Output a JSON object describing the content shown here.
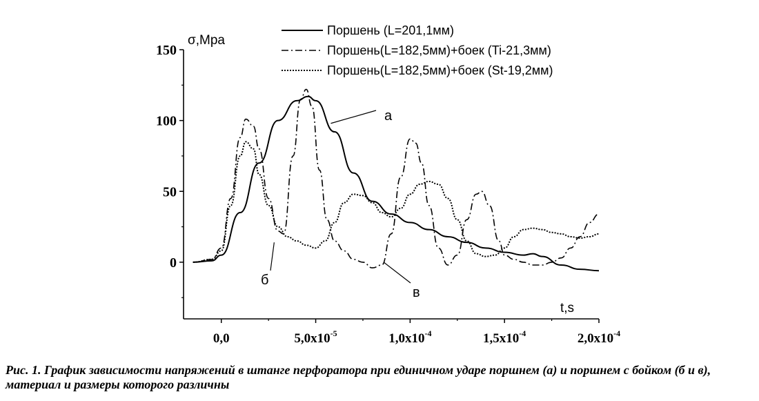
{
  "chart_data": {
    "type": "line",
    "ylabel": "σ,Mpa",
    "xlabel": "t,s",
    "xlim": [
      -2e-05,
      0.0002
    ],
    "ylim": [
      -40,
      150
    ],
    "y_ticks": [
      0,
      50,
      100,
      150
    ],
    "y_tick_labels": [
      "0",
      "50",
      "100",
      "150"
    ],
    "x_ticks": [
      0,
      5e-05,
      0.0001,
      0.00015,
      0.0002
    ],
    "x_tick_labels": [
      {
        "mantissa": "0,0",
        "exp": ""
      },
      {
        "mantissa": "5,0x10",
        "exp": "-5"
      },
      {
        "mantissa": "1,0x10",
        "exp": "-4"
      },
      {
        "mantissa": "1,5x10",
        "exp": "-4"
      },
      {
        "mantissa": "2,0x10",
        "exp": "-4"
      }
    ],
    "legend_position": "top-center",
    "series": [
      {
        "name": "Поршень (L=201,1мм)",
        "style": "solid",
        "annotation": "а",
        "x": [
          -1.5e-05,
          -5e-06,
          0,
          1e-05,
          2e-05,
          3e-05,
          4e-05,
          4.6e-05,
          5e-05,
          6e-05,
          7e-05,
          8e-05,
          9e-05,
          0.0001,
          0.00011,
          0.00012,
          0.00013,
          0.00014,
          0.00015,
          0.00016,
          0.000165,
          0.00017,
          0.00018,
          0.00019,
          0.0002
        ],
        "y": [
          0,
          1,
          5,
          35,
          70,
          100,
          114,
          117,
          114,
          92,
          63,
          43,
          34,
          28,
          23,
          18,
          14,
          10,
          7,
          5,
          6,
          4,
          -2,
          -5,
          -6
        ]
      },
      {
        "name": "Поршень(L=182,5мм)+боек (Ti-21,3мм)",
        "style": "dashdot",
        "annotation": "в",
        "x": [
          -1.5e-05,
          -5e-06,
          0,
          5e-06,
          1e-05,
          1.3e-05,
          1.7e-05,
          2e-05,
          2.5e-05,
          3e-05,
          3.3e-05,
          3.8e-05,
          4.2e-05,
          4.5e-05,
          4.8e-05,
          5.2e-05,
          5.6e-05,
          6e-05,
          6.5e-05,
          7e-05,
          7.5e-05,
          8e-05,
          8.5e-05,
          9e-05,
          9.5e-05,
          0.0001,
          0.000103,
          0.000106,
          0.00011,
          0.000115,
          0.00012,
          0.000125,
          0.00013,
          0.000135,
          0.000138,
          0.000142,
          0.000147,
          0.00015,
          0.000155,
          0.00016,
          0.000165,
          0.00017,
          0.000175,
          0.00018,
          0.000185,
          0.00019,
          0.000195,
          0.0002
        ],
        "y": [
          0,
          2,
          10,
          45,
          88,
          101,
          96,
          80,
          45,
          22,
          20,
          75,
          115,
          122,
          110,
          65,
          30,
          15,
          8,
          2,
          0,
          -4,
          -2,
          20,
          60,
          87,
          84,
          70,
          40,
          10,
          -2,
          5,
          30,
          48,
          50,
          40,
          15,
          5,
          2,
          0,
          -2,
          -2,
          0,
          3,
          10,
          18,
          28,
          34
        ]
      },
      {
        "name": "Поршень(L=182,5мм)+боек (St-19,2мм)",
        "style": "dotted",
        "annotation": "б",
        "x": [
          -1.5e-05,
          -5e-06,
          0,
          5e-06,
          1e-05,
          1.3e-05,
          1.7e-05,
          2e-05,
          2.5e-05,
          3e-05,
          3.5e-05,
          4e-05,
          4.5e-05,
          5e-05,
          5.5e-05,
          6e-05,
          6.5e-05,
          7e-05,
          7.5e-05,
          8e-05,
          8.5e-05,
          9e-05,
          9.5e-05,
          0.0001,
          0.000105,
          0.00011,
          0.000115,
          0.00012,
          0.000125,
          0.00013,
          0.000135,
          0.00014,
          0.000145,
          0.00015,
          0.000155,
          0.00016,
          0.000165,
          0.00017,
          0.000175,
          0.00018,
          0.000185,
          0.00019,
          0.000195,
          0.0002
        ],
        "y": [
          0,
          2,
          8,
          40,
          75,
          85,
          80,
          62,
          40,
          25,
          18,
          15,
          12,
          10,
          15,
          28,
          42,
          48,
          47,
          42,
          35,
          32,
          38,
          48,
          55,
          57,
          55,
          45,
          30,
          15,
          6,
          4,
          5,
          10,
          18,
          23,
          24,
          23,
          21,
          20,
          18,
          17,
          18,
          20
        ]
      }
    ],
    "caption": "Рис. 1. График зависимости напряжений в штанге перфоратора при единичном ударе поршнем (а) и поршнем с бойком (б и в), материал и размеры которого различны"
  }
}
